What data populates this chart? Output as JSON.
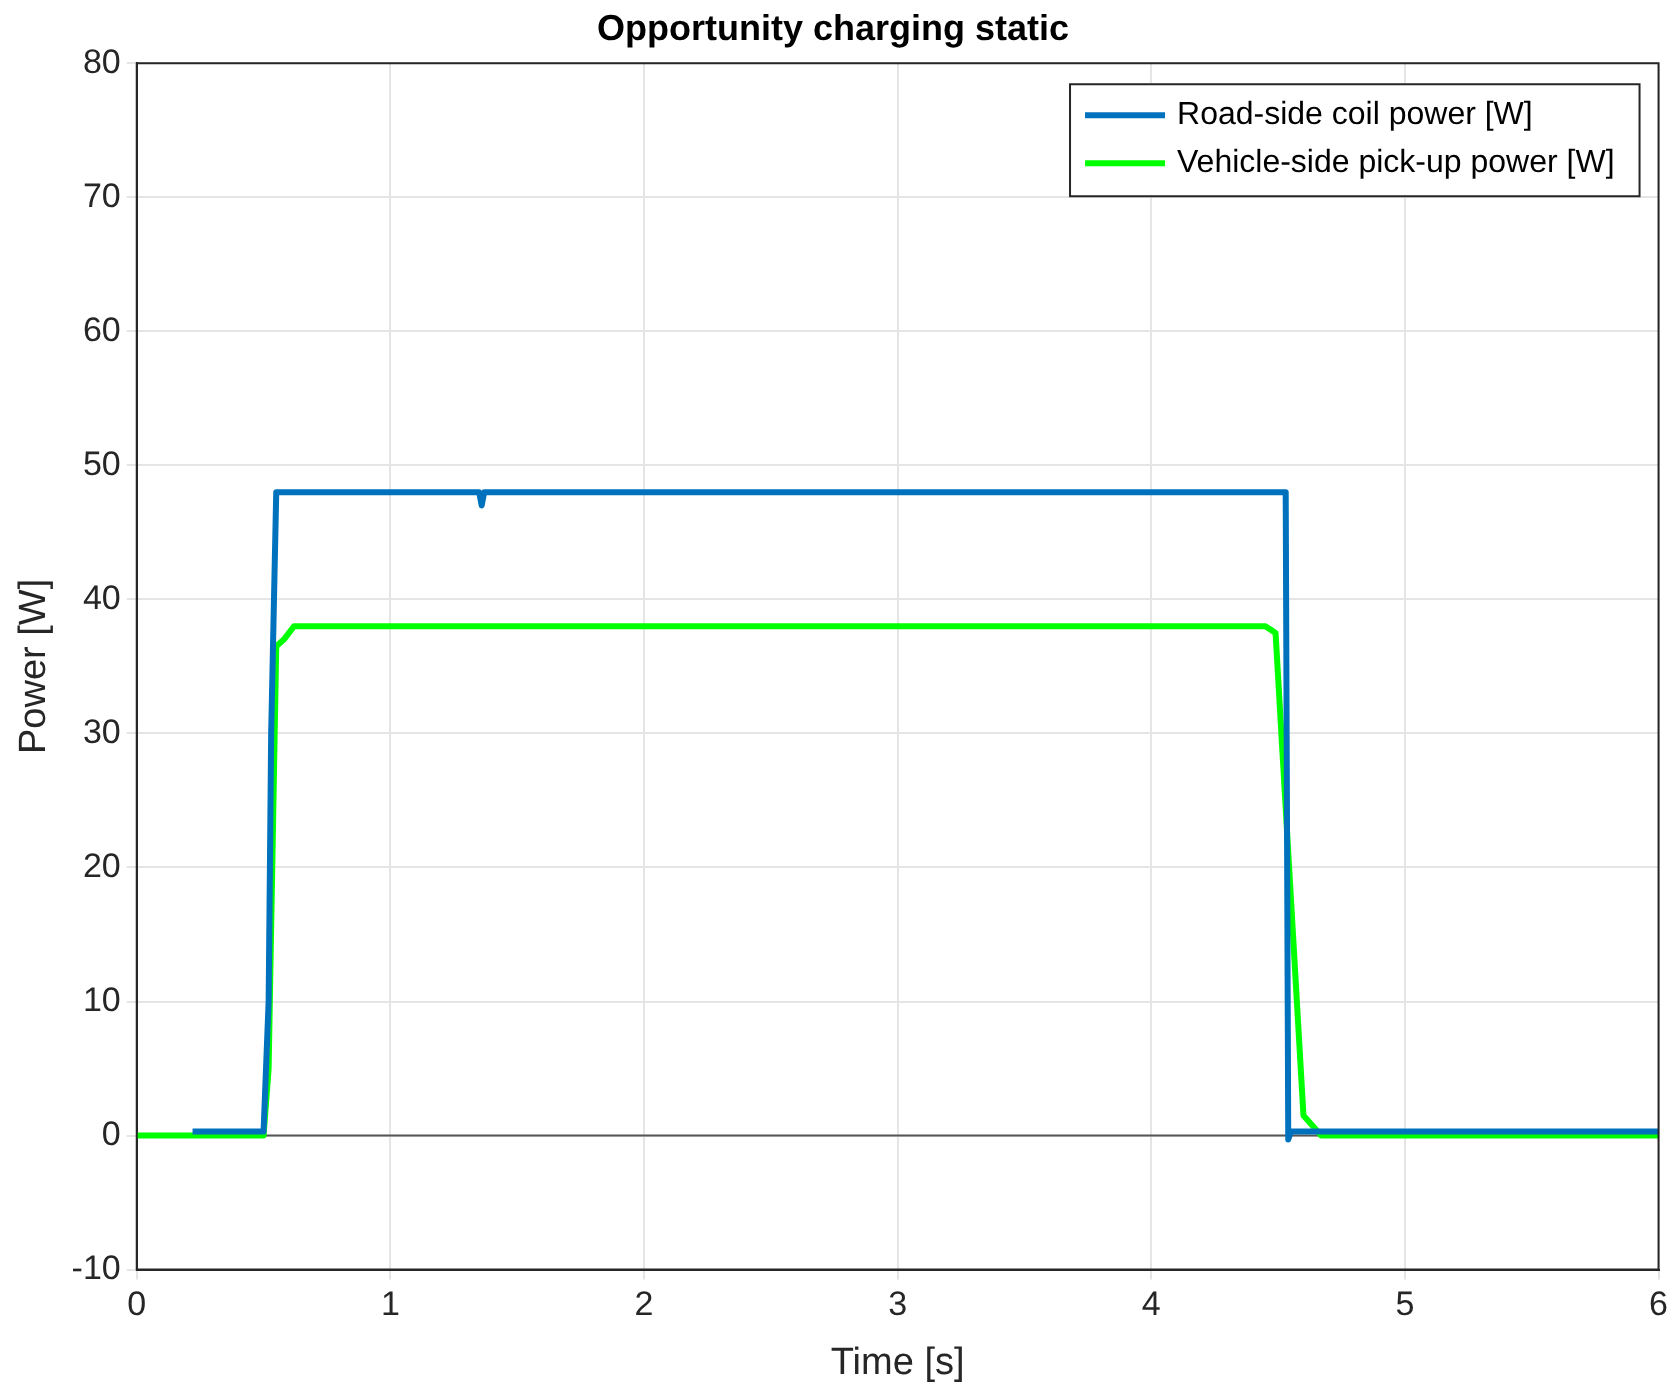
{
  "chart_data": {
    "type": "line",
    "title": "Opportunity charging static",
    "xlabel": "Time [s]",
    "ylabel": "Power [W]",
    "xlim": [
      0,
      6
    ],
    "xticks": [
      0,
      1,
      2,
      3,
      4,
      5,
      6
    ],
    "ylim": [
      -10,
      80
    ],
    "yticks": [
      -10,
      0,
      10,
      20,
      30,
      40,
      50,
      60,
      70,
      80
    ],
    "grid": true,
    "legend": "top right",
    "marker": "none",
    "line_style": "solid",
    "ref_lines": [
      {
        "axis": "y",
        "value": 0,
        "color": "#555555"
      }
    ],
    "series": [
      {
        "name": "Road-side coil power [W]",
        "color": "#0072bd",
        "x": [
          0.22,
          0.5,
          0.52,
          0.53,
          0.55,
          1.35,
          1.36,
          1.37,
          4.53,
          4.54,
          4.55,
          4.58,
          6
        ],
        "values": [
          0.3,
          0.3,
          10,
          30,
          48,
          48,
          47,
          48,
          48,
          -0.3,
          0.3,
          0.3,
          0.3
        ]
      },
      {
        "name": "Vehicle-side pick-up power [W]",
        "color": "#00ff00",
        "x": [
          0,
          0.5,
          0.52,
          0.55,
          0.58,
          0.62,
          0.8,
          4.45,
          4.49,
          4.6,
          4.67,
          6
        ],
        "values": [
          0,
          0,
          5,
          36.5,
          37,
          38,
          38,
          38,
          37.5,
          1.5,
          0,
          0
        ]
      }
    ]
  }
}
